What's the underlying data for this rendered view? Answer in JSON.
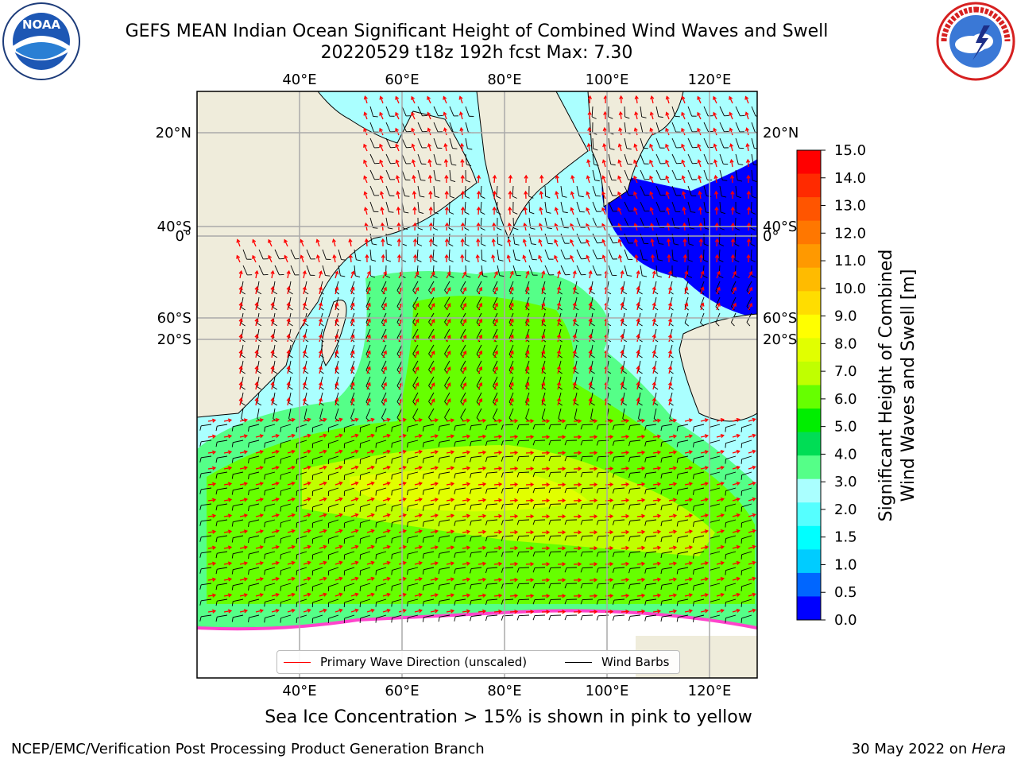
{
  "header": {
    "title_line1": "GEFS MEAN Indian Ocean Significant Height of Combined Wind Waves and Swell",
    "title_line2": "20220529 t18z 192h fcst   Max: 7.30"
  },
  "logos": {
    "left": {
      "icon": "noaa-logo",
      "text": "NOAA",
      "ring_text": "NATIONAL OCEANIC AND ATMOSPHERIC ADMINISTRATION · U.S. DEPARTMENT OF COMMERCE"
    },
    "right": {
      "icon": "nws-logo",
      "ring_text": "NATIONAL WEATHER SERVICE"
    }
  },
  "map": {
    "lon_labels": [
      "40°E",
      "60°E",
      "80°E",
      "100°E",
      "120°E"
    ],
    "lat_labels": [
      "20°N",
      "0°",
      "20°S",
      "40°S",
      "60°S"
    ],
    "lon_values": [
      40,
      60,
      80,
      100,
      120
    ],
    "lat_values": [
      20,
      0,
      -20,
      -40,
      -60
    ],
    "ocean_color": "#aaffff",
    "land_color": "#efecdb"
  },
  "legend": {
    "wave_dir_label": "Primary Wave Direction (unscaled)",
    "wave_dir_color": "#ff0000",
    "barbs_label": "Wind Barbs",
    "barbs_color": "#000000"
  },
  "colorbar": {
    "label_line1": "Significant Height of Combined",
    "label_line2": "Wind Waves and Swell [m]",
    "ticks": [
      "15.0",
      "14.0",
      "13.0",
      "12.0",
      "11.0",
      "10.0",
      "9.0",
      "8.0",
      "7.0",
      "6.0",
      "5.0",
      "4.0",
      "3.0",
      "2.0",
      "1.5",
      "1.0",
      "0.5",
      "0.0"
    ],
    "colors_top_to_bottom": [
      "#ff0000",
      "#ff2a00",
      "#ff5500",
      "#ff7700",
      "#ff9900",
      "#ffbb00",
      "#ffdd00",
      "#ffff00",
      "#e1ff00",
      "#c0ff00",
      "#66ff00",
      "#00ee00",
      "#00dd55",
      "#55ff88",
      "#aaffff",
      "#55ffff",
      "#00ffff",
      "#00ccff",
      "#0066ff",
      "#0000ff"
    ]
  },
  "footer": {
    "ice_note": "Sea Ice Concentration > 15% is shown in pink to yellow",
    "left": "NCEP/EMC/Verification Post Processing Product Generation Branch",
    "right_date": "30 May 2022 on ",
    "right_host": "Hera"
  }
}
